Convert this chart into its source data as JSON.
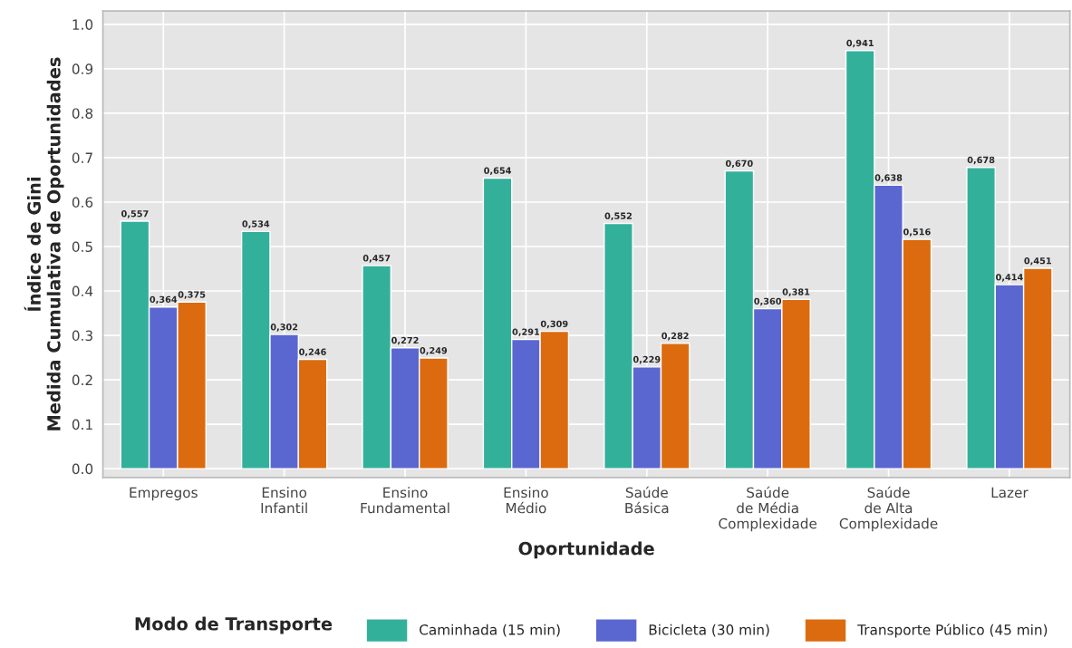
{
  "chart_data": {
    "type": "bar",
    "categories": [
      "Empregos",
      "Ensino\nInfantil",
      "Ensino\nFundamental",
      "Ensino\nMédio",
      "Saúde\nBásica",
      "Saúde\nde Média\nComplexidade",
      "Saúde\nde Alta\nComplexidade",
      "Lazer"
    ],
    "series": [
      {
        "name": "Caminhada (15 min)",
        "color": "#33b09a",
        "values": [
          0.557,
          0.534,
          0.457,
          0.654,
          0.552,
          0.67,
          0.941,
          0.678
        ],
        "value_labels": [
          "0,557",
          "0,534",
          "0,457",
          "0,654",
          "0,552",
          "0,670",
          "0,941",
          "0,678"
        ]
      },
      {
        "name": "Bicicleta (30 min)",
        "color": "#5a67d0",
        "values": [
          0.364,
          0.302,
          0.272,
          0.291,
          0.229,
          0.36,
          0.638,
          0.414
        ],
        "value_labels": [
          "0,364",
          "0,302",
          "0,272",
          "0,291",
          "0,229",
          "0,360",
          "0,638",
          "0,414"
        ]
      },
      {
        "name": "Transporte Público (45 min)",
        "color": "#dc6b0f",
        "values": [
          0.375,
          0.246,
          0.249,
          0.309,
          0.282,
          0.381,
          0.516,
          0.451
        ],
        "value_labels": [
          "0,375",
          "0,246",
          "0,249",
          "0,309",
          "0,282",
          "0,381",
          "0,516",
          "0,451"
        ]
      }
    ],
    "xlabel": "Oportunidade",
    "ylabel": "Índice de Gini\nMedida Cumulativa de Oportunidades",
    "legend_title": "Modo de Transporte",
    "legend": "bottom",
    "grid": true,
    "ylim": [
      -0.02,
      1.03
    ],
    "yticks": [
      {
        "value": 0,
        "label": "0.0"
      },
      {
        "value": 0.1,
        "label": "0.1"
      },
      {
        "value": 0.2,
        "label": "0.2"
      },
      {
        "value": 0.3,
        "label": "0.3"
      },
      {
        "value": 0.4,
        "label": "0.4"
      },
      {
        "value": 0.5,
        "label": "0.5"
      },
      {
        "value": 0.6,
        "label": "0.6"
      },
      {
        "value": 0.7,
        "label": "0.7"
      },
      {
        "value": 0.8,
        "label": "0.8"
      },
      {
        "value": 0.9,
        "label": "0.9"
      },
      {
        "value": 1,
        "label": "1.0"
      }
    ]
  }
}
